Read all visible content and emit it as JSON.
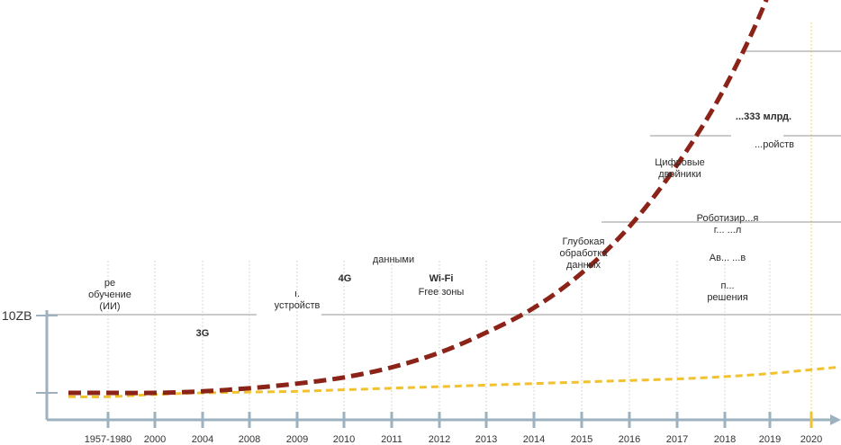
{
  "chart_data": {
    "type": "line",
    "categories": [
      "1957-1980",
      "2000",
      "2004",
      "2008",
      "2009",
      "2010",
      "2011",
      "2012",
      "2013",
      "2014",
      "2015",
      "2016",
      "2017",
      "2018",
      "2019",
      "2020"
    ],
    "y_tick_label": "10ZB",
    "series": [
      {
        "color": "#8b2318",
        "style": "dashed",
        "values": [
          0.0,
          0.0,
          0.02,
          0.06,
          0.12,
          0.2,
          0.33,
          0.52,
          0.78,
          1.1,
          1.55,
          2.15,
          2.95,
          3.95,
          5.2,
          6.8
        ]
      },
      {
        "color": "#f2c12e",
        "style": "dashed",
        "values": [
          -0.05,
          -0.02,
          0.0,
          0.01,
          0.02,
          0.04,
          0.06,
          0.08,
          0.1,
          0.12,
          0.14,
          0.16,
          0.18,
          0.21,
          0.25,
          0.3
        ]
      }
    ],
    "annotations": [
      {
        "lines": [
          "ре",
          "обучение",
          "(ИИ)"
        ],
        "bold": false
      },
      {
        "lines": [
          "3G"
        ],
        "bold": true
      },
      {
        "lines": [
          "ı.",
          "устройств"
        ],
        "bold": false
      },
      {
        "lines": [
          "4G"
        ],
        "bold": true
      },
      {
        "lines": [
          "данными"
        ],
        "bold": false
      },
      {
        "lines": [
          "Wi-Fi"
        ],
        "bold": true
      },
      {
        "lines": [
          "Free зоны"
        ],
        "bold": false
      },
      {
        "lines": [
          "Глубокая",
          "обработка",
          "данных"
        ],
        "bold": false
      },
      {
        "lines": [
          "Цифровые",
          "двойники"
        ],
        "bold": false
      },
      {
        "lines": [
          "Роботизир...я",
          "г... ...л"
        ],
        "bold": false
      },
      {
        "lines": [
          "Ав... ...в"
        ],
        "bold": false
      },
      {
        "lines": [
          "п...",
          "решения"
        ],
        "bold": false
      },
      {
        "lines": [
          "...333 млрд."
        ],
        "bold": true
      },
      {
        "lines": [
          "...ройств"
        ],
        "bold": false
      }
    ]
  }
}
